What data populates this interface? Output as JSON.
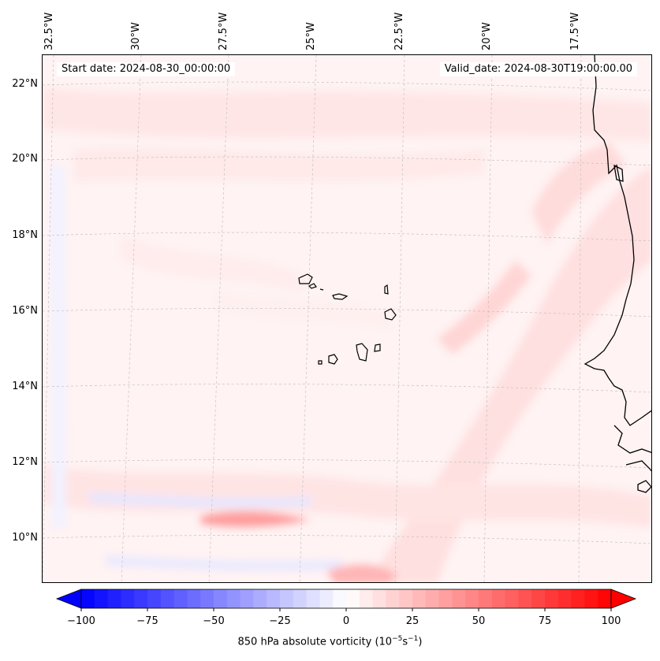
{
  "header": {
    "start_date": "Start date: 2024-08-30_00:00:00",
    "valid_date": "Valid_date: 2024-08-30T19:00:00.00"
  },
  "axes": {
    "longitude_labels": [
      "32.5°W",
      "30°W",
      "27.5°W",
      "25°W",
      "22.5°W",
      "20°W",
      "17.5°W"
    ],
    "latitude_labels": [
      "22°N",
      "20°N",
      "18°N",
      "16°N",
      "14°N",
      "12°N",
      "10°N"
    ],
    "lon_range": [
      -33,
      -15.5
    ],
    "lat_range": [
      8.8,
      22.8
    ],
    "grid": "dashed lat/lon gridlines"
  },
  "colorbar": {
    "label_prefix": "850 hPa absolute vorticity (10",
    "label_exp1": "−5",
    "label_mid": "s",
    "label_exp2": "−1",
    "label_suffix": ")",
    "ticks": [
      "−100",
      "−75",
      "−50",
      "−25",
      "0",
      "25",
      "50",
      "75",
      "100"
    ],
    "min": -100,
    "max": 100,
    "extend": "both",
    "colormap": "bwr",
    "low_color": "#0000ff",
    "mid_color": "#ffffff",
    "high_color": "#ff0000"
  },
  "map_features": {
    "regions": [
      "Cape Verde Islands",
      "West African coastline"
    ],
    "background_color": "#fff7f7"
  }
}
